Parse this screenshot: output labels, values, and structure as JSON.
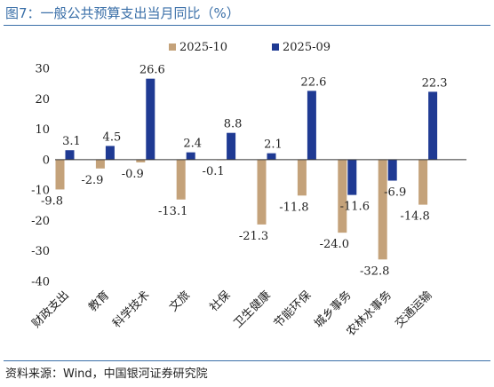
{
  "title": "图7：一般公共预算支出当月同比（%）",
  "source": "资料来源：Wind，中国银河证券研究院",
  "colors": {
    "series1": "#C4A27A",
    "series2": "#1F3A93",
    "accent": "#3a6fa8"
  },
  "chart_data": {
    "type": "bar",
    "categories": [
      "财政支出",
      "教育",
      "科学技术",
      "文旅",
      "社保",
      "卫生健康",
      "节能环保",
      "城乡事务",
      "农林水事务",
      "交通运输"
    ],
    "series": [
      {
        "name": "2025-10",
        "values": [
          -9.8,
          -2.9,
          -0.9,
          -13.1,
          -0.1,
          -21.3,
          -11.8,
          -24.0,
          -32.8,
          -14.8
        ]
      },
      {
        "name": "2025-09",
        "values": [
          3.1,
          4.5,
          26.6,
          2.4,
          8.8,
          2.1,
          22.6,
          -11.6,
          -6.9,
          22.3
        ]
      }
    ],
    "labels": [
      [
        "-9.8",
        "-2.9",
        "-0.9",
        "-13.1",
        "-0.1",
        "-21.3",
        "-11.8",
        "-24.0",
        "-32.8",
        "-14.8"
      ],
      [
        "3.1",
        "4.5",
        "26.6",
        "2.4",
        "8.8",
        "2.1",
        "22.6",
        "-11.6",
        "-6.9",
        "22.3"
      ]
    ],
    "yticks": [
      "30",
      "20",
      "10",
      "0",
      "-10",
      "-20",
      "-30",
      "-40"
    ],
    "ylim": [
      -40,
      30
    ],
    "legend": "top",
    "grid": false
  }
}
